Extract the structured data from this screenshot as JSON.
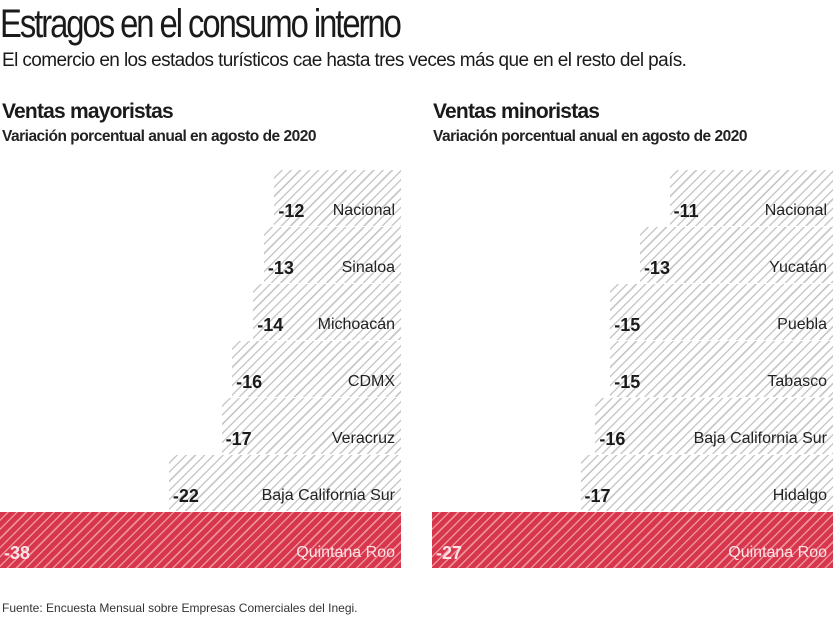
{
  "title": "Estragos en el consumo interno",
  "subtitle": "El comercio en los estados turísticos cae hasta tres veces más que en el resto del país.",
  "source": "Fuente: Encuesta Mensual sobre Empresas Comerciales del Inegi.",
  "colors": {
    "highlight": "#d7374d",
    "hatch": "#c9c9c9"
  },
  "chart_data": [
    {
      "type": "bar",
      "orientation": "horizontal",
      "title": "Ventas mayoristas",
      "subtitle": "Variación porcentual anual en agosto de 2020",
      "categories": [
        "Nacional",
        "Sinaloa",
        "Michoacán",
        "CDMX",
        "Veracruz",
        "Baja California Sur",
        "Quintana Roo"
      ],
      "values": [
        -12,
        -13,
        -14,
        -16,
        -17,
        -22,
        -38
      ],
      "highlight": "Quintana Roo"
    },
    {
      "type": "bar",
      "orientation": "horizontal",
      "title": "Ventas minoristas",
      "subtitle": "Variación porcentual anual en agosto de 2020",
      "categories": [
        "Nacional",
        "Yucatán",
        "Puebla",
        "Tabasco",
        "Baja California Sur",
        "Hidalgo",
        "Quintana Roo"
      ],
      "values": [
        -11,
        -13,
        -15,
        -15,
        -16,
        -17,
        -27
      ],
      "highlight": "Quintana Roo"
    }
  ]
}
